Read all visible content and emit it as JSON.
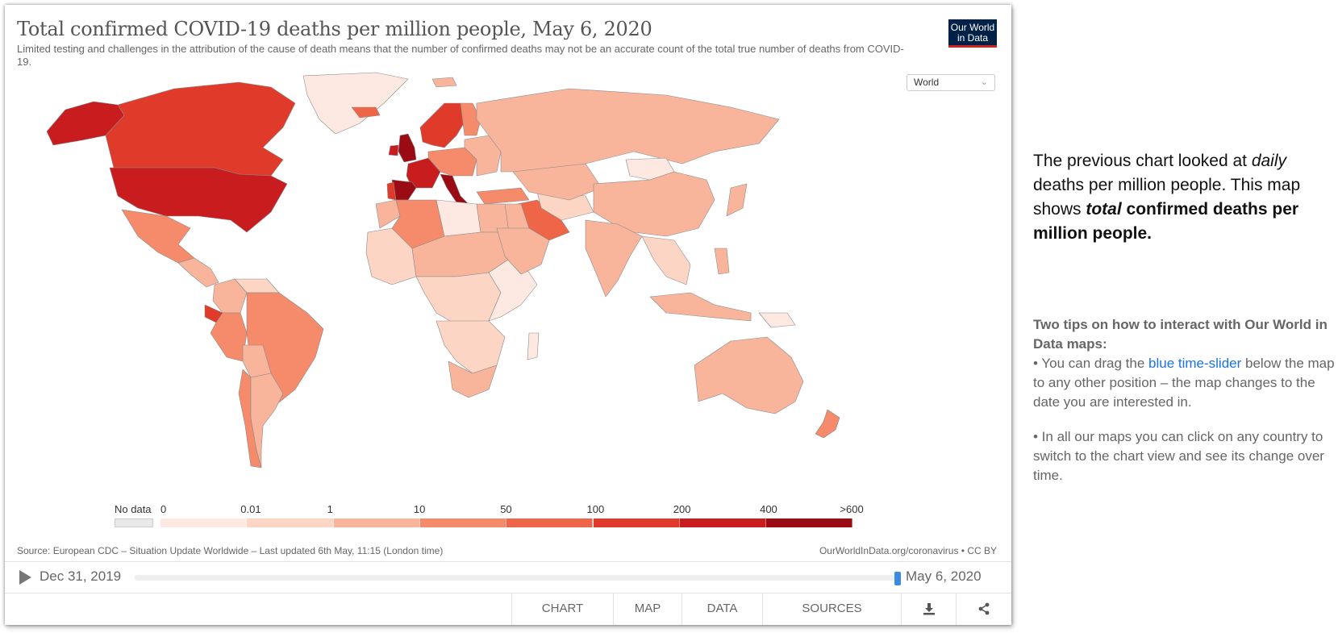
{
  "title": "Total confirmed COVID-19 deaths per million people, May 6, 2020",
  "subtitle": "Limited testing and challenges in the attribution of the cause of death means that the number of confirmed deaths may not be an accurate count of the total true number of deaths from COVID-19.",
  "logo": {
    "line1": "Our World",
    "line2": "in Data"
  },
  "region_select": {
    "value": "World"
  },
  "legend": {
    "no_data_label": "No data",
    "no_data_color": "#e9e9e9",
    "bins": [
      {
        "label": "0",
        "color": "#fde9e1"
      },
      {
        "label": "0.01",
        "color": "#fcd5c4"
      },
      {
        "label": "1",
        "color": "#f9b59b"
      },
      {
        "label": "10",
        "color": "#f58b6a"
      },
      {
        "label": "50",
        "color": "#ef6548"
      },
      {
        "label": "100",
        "color": "#e03a2a"
      },
      {
        "label": "200",
        "color": "#c81c1f"
      },
      {
        "label": "400",
        "color": "#9b0b13"
      }
    ],
    "last_label": ">600"
  },
  "source": "Source: European CDC – Situation Update Worldwide – Last updated 6th May, 11:15 (London time)",
  "credit": "OurWorldInData.org/coronavirus • CC BY",
  "timeline": {
    "start_date": "Dec 31, 2019",
    "end_date": "May 6, 2020",
    "position": 1.0
  },
  "tabs": [
    {
      "label": "CHART",
      "active": false
    },
    {
      "label": "MAP",
      "active": true
    },
    {
      "label": "DATA",
      "active": false
    },
    {
      "label": "SOURCES",
      "active": false
    }
  ],
  "icons": {
    "download": "download-icon",
    "share": "share-icon"
  },
  "aside": {
    "intro_part1": "The previous chart looked at ",
    "intro_em": "daily",
    "intro_part2": " deaths per million people. This map shows ",
    "intro_strong_em": "total",
    "intro_strong": " confirmed deaths per million people.",
    "tips_head": "Two tips on how to interact with Our World in Data maps:",
    "tip1_part1": "• You can drag the ",
    "tip1_link": "blue time-slider",
    "tip1_part2": " below the map to any other position – the map changes to the date you are interested in.",
    "tip2": "• In all our maps you can click on any country to switch to the chart view and see its change over time."
  },
  "map_regions": [
    {
      "name": "Alaska",
      "color": "#c81c1f"
    },
    {
      "name": "Canada",
      "color": "#e03a2a"
    },
    {
      "name": "Greenland",
      "color": "#fde9e1"
    },
    {
      "name": "United States",
      "color": "#c81c1f"
    },
    {
      "name": "Mexico",
      "color": "#f58b6a"
    },
    {
      "name": "Central America",
      "color": "#f9b59b"
    },
    {
      "name": "Colombia",
      "color": "#f9b59b"
    },
    {
      "name": "Venezuela",
      "color": "#fcd5c4"
    },
    {
      "name": "Ecuador",
      "color": "#e03a2a"
    },
    {
      "name": "Peru",
      "color": "#f58b6a"
    },
    {
      "name": "Brazil",
      "color": "#f58b6a"
    },
    {
      "name": "Bolivia",
      "color": "#f9b59b"
    },
    {
      "name": "Chile",
      "color": "#f58b6a"
    },
    {
      "name": "Argentina",
      "color": "#f9b59b"
    },
    {
      "name": "United Kingdom",
      "color": "#9b0b13"
    },
    {
      "name": "Ireland",
      "color": "#c81c1f"
    },
    {
      "name": "Iceland",
      "color": "#ef6548"
    },
    {
      "name": "Scandinavia",
      "color": "#e03a2a"
    },
    {
      "name": "Finland",
      "color": "#f58b6a"
    },
    {
      "name": "France",
      "color": "#c81c1f"
    },
    {
      "name": "Spain",
      "color": "#9b0b13"
    },
    {
      "name": "Portugal",
      "color": "#e03a2a"
    },
    {
      "name": "Italy",
      "color": "#9b0b13"
    },
    {
      "name": "Central Europe",
      "color": "#f58b6a"
    },
    {
      "name": "Eastern Europe",
      "color": "#f9b59b"
    },
    {
      "name": "Russia",
      "color": "#f9b59b"
    },
    {
      "name": "Turkey",
      "color": "#f58b6a"
    },
    {
      "name": "Iran",
      "color": "#ef6548"
    },
    {
      "name": "Middle East",
      "color": "#f9b59b"
    },
    {
      "name": "Central Asia",
      "color": "#fcd5c4"
    },
    {
      "name": "Kazakhstan",
      "color": "#f9b59b"
    },
    {
      "name": "Mongolia",
      "color": "#fde9e1"
    },
    {
      "name": "China",
      "color": "#f9b59b"
    },
    {
      "name": "India",
      "color": "#f9b59b"
    },
    {
      "name": "Southeast Asia",
      "color": "#fcd5c4"
    },
    {
      "name": "Japan",
      "color": "#f9b59b"
    },
    {
      "name": "Indonesia",
      "color": "#f9b59b"
    },
    {
      "name": "Philippines",
      "color": "#f9b59b"
    },
    {
      "name": "Papua New Guinea",
      "color": "#fde9e1"
    },
    {
      "name": "Australia",
      "color": "#f9b59b"
    },
    {
      "name": "New Zealand",
      "color": "#f58b6a"
    },
    {
      "name": "Algeria",
      "color": "#f58b6a"
    },
    {
      "name": "Morocco",
      "color": "#f9b59b"
    },
    {
      "name": "Libya",
      "color": "#fde9e1"
    },
    {
      "name": "Egypt",
      "color": "#f9b59b"
    },
    {
      "name": "West Africa",
      "color": "#fcd5c4"
    },
    {
      "name": "Sahel",
      "color": "#f9b59b"
    },
    {
      "name": "Central Africa",
      "color": "#fcd5c4"
    },
    {
      "name": "East Africa",
      "color": "#fde9e1"
    },
    {
      "name": "Southern Africa",
      "color": "#fcd5c4"
    },
    {
      "name": "South Africa",
      "color": "#f9b59b"
    },
    {
      "name": "Madagascar",
      "color": "#fde9e1"
    },
    {
      "name": "Saudi Arabia",
      "color": "#f9b59b"
    },
    {
      "name": "Svalbard",
      "color": "#f9b59b"
    }
  ]
}
